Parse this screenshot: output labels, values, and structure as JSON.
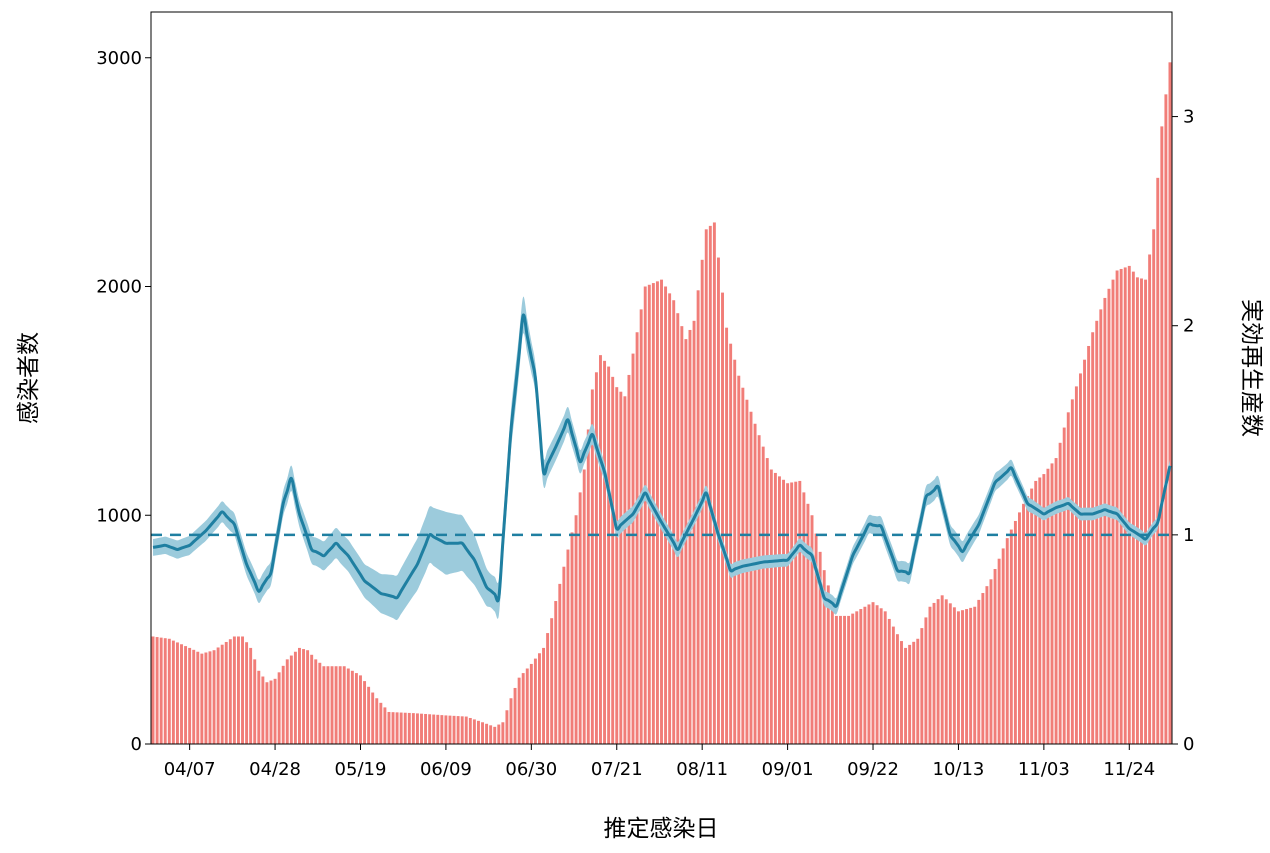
{
  "chart_data": {
    "type": "bar+line",
    "xlabel": "推定感染日",
    "ylabel_left": "感染者数",
    "ylabel_right": "実効再生産数",
    "x_start": "03/29",
    "x_end": "12/04",
    "x_tick_labels": [
      "04/07",
      "04/28",
      "05/19",
      "06/09",
      "06/30",
      "07/21",
      "08/11",
      "09/01",
      "09/22",
      "10/13",
      "11/03",
      "11/24"
    ],
    "y_left_ticks": [
      0,
      1000,
      2000,
      3000
    ],
    "y_left_lim": [
      0,
      3200
    ],
    "y_right_ticks": [
      0,
      1,
      2,
      3
    ],
    "y_right_lim": [
      0,
      3.5
    ],
    "reference_line_rt": 1,
    "colors": {
      "bars": "#f17d78",
      "rt_line": "#1f7fa1",
      "ci_fill": "#9ccbdc",
      "ci_fill_dark": "#5f95aa",
      "reference_line": "#1f7fa1"
    },
    "grid": false,
    "series": [
      {
        "kind": "bar",
        "axis": "left",
        "description": "daily infections (piecewise anchors, interpolated daily)",
        "anchors": [
          [
            "03/29",
            470
          ],
          [
            "04/02",
            460
          ],
          [
            "04/07",
            420
          ],
          [
            "04/10",
            395
          ],
          [
            "04/13",
            410
          ],
          [
            "04/18",
            470
          ],
          [
            "04/20",
            470
          ],
          [
            "04/22",
            420
          ],
          [
            "04/24",
            320
          ],
          [
            "04/26",
            270
          ],
          [
            "04/28",
            285
          ],
          [
            "05/01",
            370
          ],
          [
            "05/04",
            420
          ],
          [
            "05/06",
            410
          ],
          [
            "05/08",
            370
          ],
          [
            "05/10",
            340
          ],
          [
            "05/15",
            340
          ],
          [
            "05/19",
            300
          ],
          [
            "05/23",
            200
          ],
          [
            "05/26",
            140
          ],
          [
            "06/01",
            135
          ],
          [
            "06/05",
            130
          ],
          [
            "06/09",
            125
          ],
          [
            "06/14",
            120
          ],
          [
            "06/18",
            95
          ],
          [
            "06/21",
            75
          ],
          [
            "06/23",
            95
          ],
          [
            "06/25",
            200
          ],
          [
            "06/27",
            290
          ],
          [
            "06/30",
            350
          ],
          [
            "07/03",
            420
          ],
          [
            "07/05",
            550
          ],
          [
            "07/07",
            700
          ],
          [
            "07/09",
            850
          ],
          [
            "07/11",
            1000
          ],
          [
            "07/13",
            1200
          ],
          [
            "07/15",
            1550
          ],
          [
            "07/17",
            1700
          ],
          [
            "07/19",
            1650
          ],
          [
            "07/21",
            1560
          ],
          [
            "07/23",
            1520
          ],
          [
            "07/26",
            1800
          ],
          [
            "07/28",
            2000
          ],
          [
            "08/01",
            2030
          ],
          [
            "08/04",
            1940
          ],
          [
            "08/07",
            1770
          ],
          [
            "08/09",
            1850
          ],
          [
            "08/12",
            2250
          ],
          [
            "08/14",
            2280
          ],
          [
            "08/17",
            1820
          ],
          [
            "08/20",
            1610
          ],
          [
            "08/24",
            1400
          ],
          [
            "08/28",
            1200
          ],
          [
            "09/01",
            1140
          ],
          [
            "09/04",
            1150
          ],
          [
            "09/07",
            1000
          ],
          [
            "09/10",
            760
          ],
          [
            "09/13",
            560
          ],
          [
            "09/16",
            560
          ],
          [
            "09/22",
            620
          ],
          [
            "09/25",
            580
          ],
          [
            "09/28",
            480
          ],
          [
            "09/30",
            420
          ],
          [
            "10/03",
            460
          ],
          [
            "10/06",
            600
          ],
          [
            "10/09",
            650
          ],
          [
            "10/13",
            580
          ],
          [
            "10/17",
            600
          ],
          [
            "10/21",
            720
          ],
          [
            "10/25",
            900
          ],
          [
            "10/29",
            1050
          ],
          [
            "11/01",
            1150
          ],
          [
            "11/03",
            1180
          ],
          [
            "11/06",
            1250
          ],
          [
            "11/09",
            1450
          ],
          [
            "11/12",
            1620
          ],
          [
            "11/15",
            1800
          ],
          [
            "11/18",
            1950
          ],
          [
            "11/21",
            2070
          ],
          [
            "11/24",
            2090
          ],
          [
            "11/26",
            2040
          ],
          [
            "11/28",
            2030
          ],
          [
            "11/30",
            2250
          ],
          [
            "12/02",
            2700
          ],
          [
            "12/04",
            2980
          ]
        ]
      },
      {
        "kind": "line",
        "axis": "right",
        "description": "effective reproduction number Rt (mean)",
        "points": [
          [
            "03/29",
            0.94
          ],
          [
            "04/01",
            0.95
          ],
          [
            "04/04",
            0.93
          ],
          [
            "04/07",
            0.95
          ],
          [
            "04/11",
            1.02
          ],
          [
            "04/15",
            1.11
          ],
          [
            "04/18",
            1.05
          ],
          [
            "04/21",
            0.86
          ],
          [
            "04/24",
            0.73
          ],
          [
            "04/27",
            0.82
          ],
          [
            "04/30",
            1.15
          ],
          [
            "05/02",
            1.27
          ],
          [
            "05/04",
            1.1
          ],
          [
            "05/07",
            0.93
          ],
          [
            "05/10",
            0.9
          ],
          [
            "05/13",
            0.96
          ],
          [
            "05/16",
            0.9
          ],
          [
            "05/20",
            0.78
          ],
          [
            "05/24",
            0.72
          ],
          [
            "05/28",
            0.7
          ],
          [
            "06/02",
            0.86
          ],
          [
            "06/05",
            1.0
          ],
          [
            "06/09",
            0.96
          ],
          [
            "06/13",
            0.96
          ],
          [
            "06/16",
            0.88
          ],
          [
            "06/19",
            0.75
          ],
          [
            "06/22",
            0.7
          ],
          [
            "06/25",
            1.5
          ],
          [
            "06/28",
            2.05
          ],
          [
            "07/01",
            1.75
          ],
          [
            "07/03",
            1.3
          ],
          [
            "07/06",
            1.42
          ],
          [
            "07/09",
            1.55
          ],
          [
            "07/12",
            1.35
          ],
          [
            "07/15",
            1.48
          ],
          [
            "07/18",
            1.3
          ],
          [
            "07/21",
            1.03
          ],
          [
            "07/25",
            1.1
          ],
          [
            "07/28",
            1.2
          ],
          [
            "08/01",
            1.06
          ],
          [
            "08/05",
            0.93
          ],
          [
            "08/09",
            1.08
          ],
          [
            "08/12",
            1.2
          ],
          [
            "08/15",
            1.0
          ],
          [
            "08/18",
            0.83
          ],
          [
            "08/21",
            0.85
          ],
          [
            "08/26",
            0.87
          ],
          [
            "09/01",
            0.88
          ],
          [
            "09/04",
            0.95
          ],
          [
            "09/07",
            0.9
          ],
          [
            "09/10",
            0.7
          ],
          [
            "09/13",
            0.66
          ],
          [
            "09/17",
            0.9
          ],
          [
            "09/21",
            1.05
          ],
          [
            "09/24",
            1.04
          ],
          [
            "09/28",
            0.83
          ],
          [
            "10/01",
            0.82
          ],
          [
            "10/05",
            1.18
          ],
          [
            "10/08",
            1.23
          ],
          [
            "10/11",
            1.0
          ],
          [
            "10/14",
            0.92
          ],
          [
            "10/18",
            1.05
          ],
          [
            "10/22",
            1.25
          ],
          [
            "10/26",
            1.32
          ],
          [
            "10/30",
            1.15
          ],
          [
            "11/03",
            1.1
          ],
          [
            "11/06",
            1.13
          ],
          [
            "11/09",
            1.15
          ],
          [
            "11/12",
            1.1
          ],
          [
            "11/15",
            1.1
          ],
          [
            "11/18",
            1.12
          ],
          [
            "11/21",
            1.1
          ],
          [
            "11/24",
            1.03
          ],
          [
            "11/28",
            0.98
          ],
          [
            "12/01",
            1.06
          ],
          [
            "12/04",
            1.33
          ]
        ]
      },
      {
        "kind": "band",
        "axis": "right",
        "description": "Rt credible interval half-width",
        "half_width": [
          [
            "03/29",
            0.04
          ],
          [
            "05/01",
            0.06
          ],
          [
            "05/20",
            0.08
          ],
          [
            "06/01",
            0.12
          ],
          [
            "06/09",
            0.15
          ],
          [
            "06/16",
            0.12
          ],
          [
            "06/20",
            0.08
          ],
          [
            "06/26",
            0.1
          ],
          [
            "07/01",
            0.07
          ],
          [
            "07/10",
            0.06
          ],
          [
            "07/20",
            0.04
          ],
          [
            "09/01",
            0.03
          ],
          [
            "09/14",
            0.04
          ],
          [
            "10/01",
            0.05
          ],
          [
            "10/15",
            0.05
          ],
          [
            "11/03",
            0.03
          ],
          [
            "12/04",
            0.03
          ]
        ]
      }
    ]
  }
}
